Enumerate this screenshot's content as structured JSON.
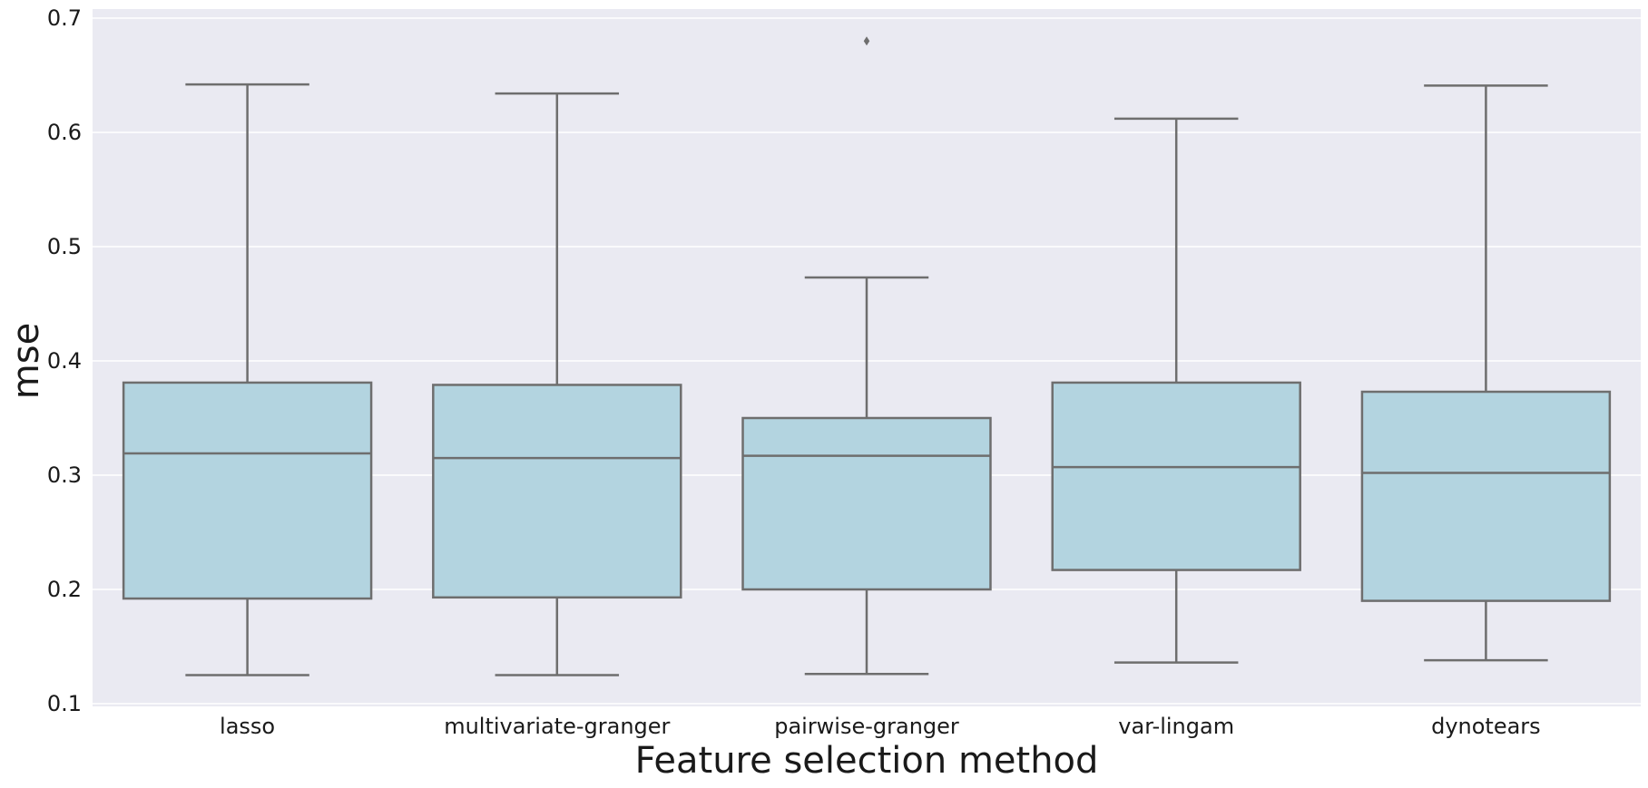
{
  "chart_data": {
    "type": "box",
    "xlabel": "Feature selection method",
    "ylabel": "mse",
    "ylim": [
      0.1,
      0.7
    ],
    "yticks": [
      0.1,
      0.2,
      0.3,
      0.4,
      0.5,
      0.6,
      0.7
    ],
    "ytick_labels": [
      "0.1",
      "0.2",
      "0.3",
      "0.4",
      "0.5",
      "0.6",
      "0.7"
    ],
    "grid": true,
    "colors": {
      "background": "#eaeaf2",
      "box_fill": "#b3d4e0",
      "line": "#6e6e6e",
      "grid": "#ffffff"
    },
    "categories": [
      "lasso",
      "multivariate-granger",
      "pairwise-granger",
      "var-lingam",
      "dynotears"
    ],
    "boxes": [
      {
        "category": "lasso",
        "whisker_low": 0.125,
        "q1": 0.192,
        "median": 0.319,
        "q3": 0.381,
        "whisker_high": 0.642,
        "outliers": []
      },
      {
        "category": "multivariate-granger",
        "whisker_low": 0.125,
        "q1": 0.193,
        "median": 0.315,
        "q3": 0.379,
        "whisker_high": 0.634,
        "outliers": []
      },
      {
        "category": "pairwise-granger",
        "whisker_low": 0.126,
        "q1": 0.2,
        "median": 0.317,
        "q3": 0.35,
        "whisker_high": 0.473,
        "outliers": [
          0.68
        ]
      },
      {
        "category": "var-lingam",
        "whisker_low": 0.136,
        "q1": 0.217,
        "median": 0.307,
        "q3": 0.381,
        "whisker_high": 0.612,
        "outliers": []
      },
      {
        "category": "dynotears",
        "whisker_low": 0.138,
        "q1": 0.19,
        "median": 0.302,
        "q3": 0.373,
        "whisker_high": 0.641,
        "outliers": []
      }
    ]
  }
}
